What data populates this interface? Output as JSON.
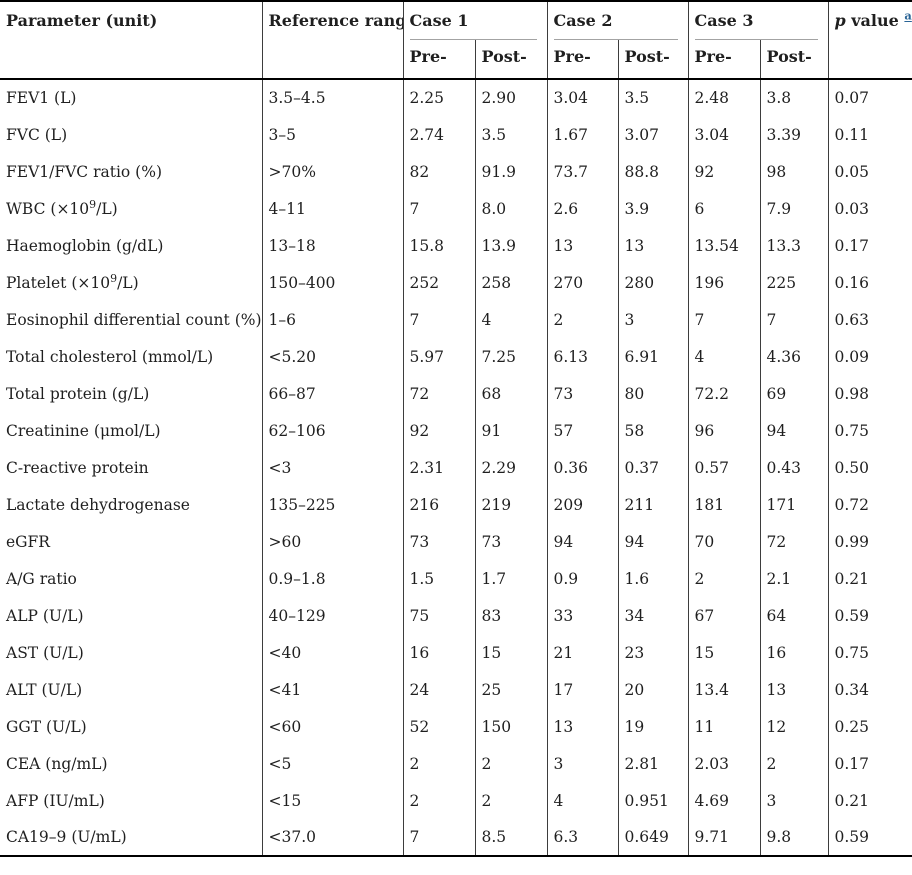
{
  "table": {
    "header": {
      "parameter": "Parameter (unit)",
      "reference_range": "Reference range",
      "cases": [
        "Case 1",
        "Case 2",
        "Case 3"
      ],
      "sub_pre": "Pre-",
      "sub_post": "Post-",
      "p_value": {
        "p": "p",
        "value": " value",
        "footnote": "a"
      }
    },
    "rows": [
      {
        "parameter": "FEV1 (L)",
        "reference": "3.5–4.5",
        "values": [
          "2.25",
          "2.90",
          "3.04",
          "3.5",
          "2.48",
          "3.8"
        ],
        "p": "0.07"
      },
      {
        "parameter": "FVC (L)",
        "reference": "3–5",
        "values": [
          "2.74",
          "3.5",
          "1.67",
          "3.07",
          "3.04",
          "3.39"
        ],
        "p": "0.11"
      },
      {
        "parameter": "FEV1/FVC ratio (%)",
        "reference": ">70%",
        "values": [
          "82",
          "91.9",
          "73.7",
          "88.8",
          "92",
          "98"
        ],
        "p": "0.05"
      },
      {
        "parameter": "WBC (×10^9/L)",
        "reference": "4–11",
        "values": [
          "7",
          "8.0",
          "2.6",
          "3.9",
          "6",
          "7.9"
        ],
        "p": "0.03"
      },
      {
        "parameter": "Haemoglobin (g/dL)",
        "reference": "13–18",
        "values": [
          "15.8",
          "13.9",
          "13",
          "13",
          "13.54",
          "13.3"
        ],
        "p": "0.17"
      },
      {
        "parameter": "Platelet (×10^9/L)",
        "reference": "150–400",
        "values": [
          "252",
          "258",
          "270",
          "280",
          "196",
          "225"
        ],
        "p": "0.16"
      },
      {
        "parameter": "Eosinophil differential count (%)",
        "reference": "1–6",
        "values": [
          "7",
          "4",
          "2",
          "3",
          "7",
          "7"
        ],
        "p": "0.63"
      },
      {
        "parameter": "Total cholesterol (mmol/L)",
        "reference": "<5.20",
        "values": [
          "5.97",
          "7.25",
          "6.13",
          "6.91",
          "4",
          "4.36"
        ],
        "p": "0.09"
      },
      {
        "parameter": "Total protein (g/L)",
        "reference": "66–87",
        "values": [
          "72",
          "68",
          "73",
          "80",
          "72.2",
          "69"
        ],
        "p": "0.98"
      },
      {
        "parameter": "Creatinine (μmol/L)",
        "reference": "62–106",
        "values": [
          "92",
          "91",
          "57",
          "58",
          "96",
          "94"
        ],
        "p": "0.75"
      },
      {
        "parameter": "C-reactive protein",
        "reference": "<3",
        "values": [
          "2.31",
          "2.29",
          "0.36",
          "0.37",
          "0.57",
          "0.43"
        ],
        "p": "0.50"
      },
      {
        "parameter": "Lactate dehydrogenase",
        "reference": "135–225",
        "values": [
          "216",
          "219",
          "209",
          "211",
          "181",
          "171"
        ],
        "p": "0.72"
      },
      {
        "parameter": "eGFR",
        "reference": ">60",
        "values": [
          "73",
          "73",
          "94",
          "94",
          "70",
          "72"
        ],
        "p": "0.99"
      },
      {
        "parameter": "A/G ratio",
        "reference": "0.9–1.8",
        "values": [
          "1.5",
          "1.7",
          "0.9",
          "1.6",
          "2",
          "2.1"
        ],
        "p": "0.21"
      },
      {
        "parameter": "ALP (U/L)",
        "reference": "40–129",
        "values": [
          "75",
          "83",
          "33",
          "34",
          "67",
          "64"
        ],
        "p": "0.59"
      },
      {
        "parameter": "AST (U/L)",
        "reference": "<40",
        "values": [
          "16",
          "15",
          "21",
          "23",
          "15",
          "16"
        ],
        "p": "0.75"
      },
      {
        "parameter": "ALT (U/L)",
        "reference": "<41",
        "values": [
          "24",
          "25",
          "17",
          "20",
          "13.4",
          "13"
        ],
        "p": "0.34"
      },
      {
        "parameter": "GGT (U/L)",
        "reference": "<60",
        "values": [
          "52",
          "150",
          "13",
          "19",
          "11",
          "12"
        ],
        "p": "0.25"
      },
      {
        "parameter": "CEA (ng/mL)",
        "reference": "<5",
        "values": [
          "2",
          "2",
          "3",
          "2.81",
          "2.03",
          "2"
        ],
        "p": "0.17"
      },
      {
        "parameter": "AFP (IU/mL)",
        "reference": "<15",
        "values": [
          "2",
          "2",
          "4",
          "0.951",
          "4.69",
          "3"
        ],
        "p": "0.21"
      },
      {
        "parameter": "CA19–9 (U/mL)",
        "reference": "<37.0",
        "values": [
          "7",
          "8.5",
          "6.3",
          "0.649",
          "9.71",
          "9.8"
        ],
        "p": "0.59"
      }
    ],
    "cell_names": [
      "parameter-cell",
      "reference-range-cell",
      "case1-pre-cell",
      "case1-post-cell",
      "case2-pre-cell",
      "case2-post-cell",
      "case3-pre-cell",
      "case3-post-cell",
      "p-value-cell"
    ]
  },
  "colors": {
    "text": "#1f1f1f",
    "border_strong": "#000000",
    "border_thin": "#3d3d3d",
    "case_underline": "#a3a3a3",
    "footnote_link": "#2a6496"
  }
}
